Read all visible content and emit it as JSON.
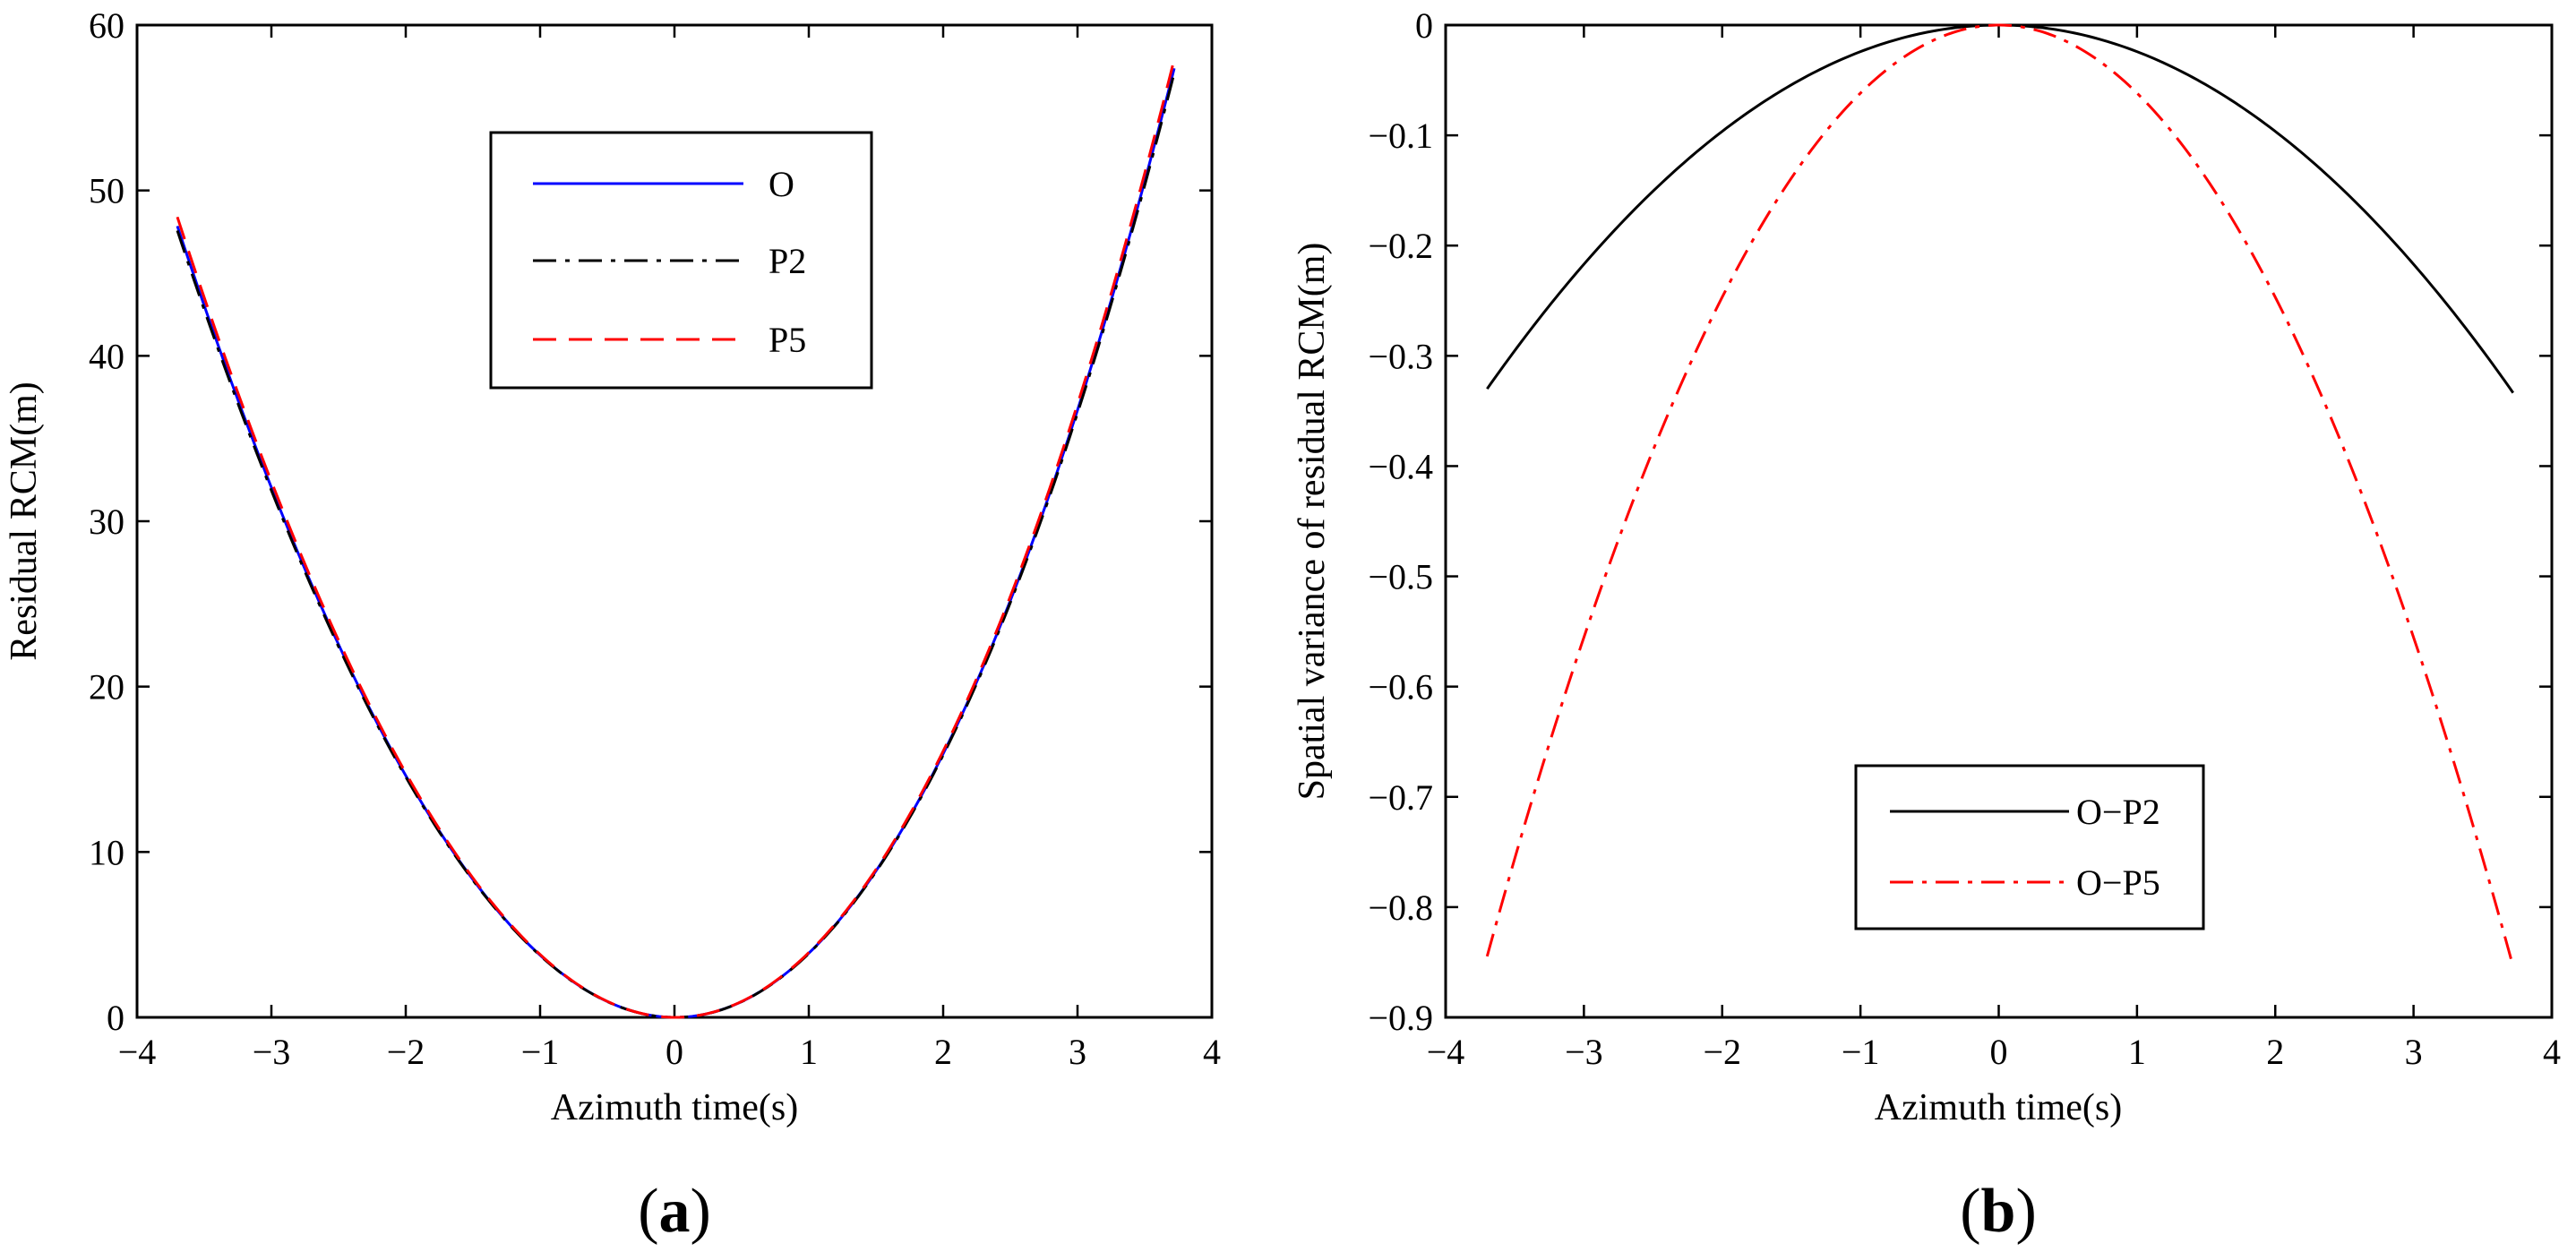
{
  "chart_data": [
    {
      "type": "line",
      "panel_label": "a",
      "xlabel": "Azimuth time(s)",
      "ylabel": "Residual RCM(m)",
      "xlim": [
        -4,
        4
      ],
      "ylim": [
        0,
        60
      ],
      "xticks": [
        -4,
        -3,
        -2,
        -1,
        0,
        1,
        2,
        3,
        4
      ],
      "yticks": [
        0,
        10,
        20,
        30,
        40,
        50,
        60
      ],
      "xtick_labels": [
        "−4",
        "−3",
        "−2",
        "−1",
        "0",
        "1",
        "2",
        "3",
        "4"
      ],
      "ytick_labels": [
        "0",
        "10",
        "20",
        "30",
        "40",
        "50",
        "60"
      ],
      "legend_position": "upper-center",
      "series": [
        {
          "name": "O",
          "color": "#0000ff",
          "dash": "solid",
          "x_range": [
            -3.7,
            3.72
          ],
          "coef": [
            0,
            -0.03,
            3.82,
            0.09
          ]
        },
        {
          "name": "P2",
          "color": "#000000",
          "dash": "dashdot",
          "x_range": [
            -3.7,
            3.72
          ],
          "coef": [
            0,
            -0.03,
            3.8,
            0.09
          ]
        },
        {
          "name": "P5",
          "color": "#ff0000",
          "dash": "dashed",
          "x_range": [
            -3.7,
            3.72
          ],
          "coef": [
            0,
            -0.03,
            3.86,
            0.09
          ]
        }
      ]
    },
    {
      "type": "line",
      "panel_label": "b",
      "xlabel": "Azimuth time(s)",
      "ylabel": "Spatial variance of residual RCM(m)",
      "xlim": [
        -4,
        4
      ],
      "ylim": [
        -0.9,
        0
      ],
      "xticks": [
        -4,
        -3,
        -2,
        -1,
        0,
        1,
        2,
        3,
        4
      ],
      "yticks": [
        0,
        -0.1,
        -0.2,
        -0.3,
        -0.4,
        -0.5,
        -0.6,
        -0.7,
        -0.8,
        -0.9
      ],
      "xtick_labels": [
        "−4",
        "−3",
        "−2",
        "−1",
        "0",
        "1",
        "2",
        "3",
        "4"
      ],
      "ytick_labels": [
        "0",
        "−0.1",
        "−0.2",
        "−0.3",
        "−0.4",
        "−0.5",
        "−0.6",
        "−0.7",
        "−0.8",
        "−0.9"
      ],
      "legend_position": "lower-center",
      "series": [
        {
          "name": "O−P2",
          "color": "#000000",
          "dash": "solid",
          "x_range": [
            -3.7,
            3.72
          ],
          "coef": [
            0,
            0,
            -0.0241,
            0
          ]
        },
        {
          "name": "O−P5",
          "color": "#ff0000",
          "dash": "dashdot",
          "x_range": [
            -3.7,
            3.72
          ],
          "coef": [
            0,
            0,
            -0.0617,
            0
          ]
        }
      ]
    }
  ]
}
